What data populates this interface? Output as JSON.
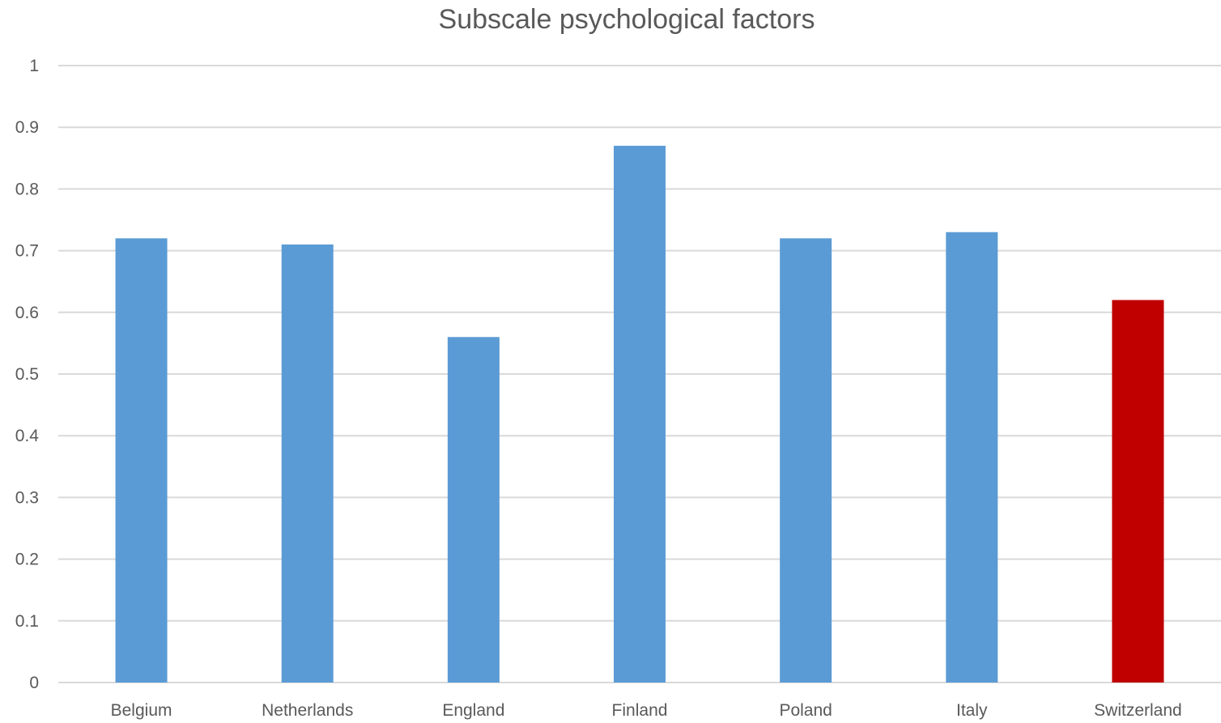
{
  "chart_data": {
    "type": "bar",
    "title": "Subscale psychological factors",
    "xlabel": "",
    "ylabel": "",
    "categories": [
      "Belgium",
      "Netherlands",
      "England",
      "Finland",
      "Poland",
      "Italy",
      "Switzerland"
    ],
    "values": [
      0.72,
      0.71,
      0.56,
      0.87,
      0.72,
      0.73,
      0.62
    ],
    "ylim": [
      0,
      1
    ],
    "yticks": [
      "0",
      "0.1",
      "0.2",
      "0.3",
      "0.4",
      "0.5",
      "0.6",
      "0.7",
      "0.8",
      "0.9",
      "1"
    ],
    "grid": true,
    "legend": "none",
    "colors": {
      "default_bar": "#5b9bd5",
      "highlight_bar": "#c00000",
      "highlight_category": "Switzerland"
    }
  }
}
